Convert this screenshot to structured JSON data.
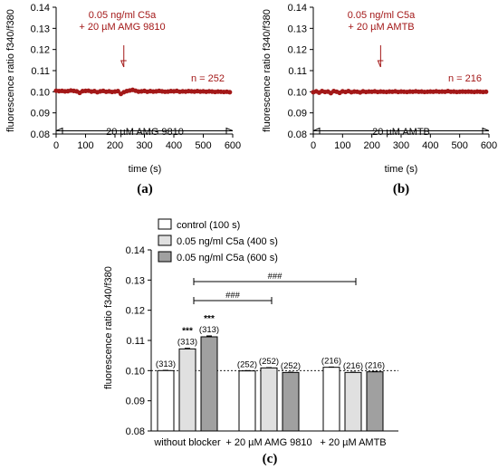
{
  "panels": {
    "a": {
      "letter": "(a)"
    },
    "b": {
      "letter": "(b)"
    },
    "c": {
      "letter": "(c)"
    }
  },
  "colors": {
    "trace": "#a31818",
    "bar_control": "#ffffff",
    "bar_400": "#e0e0e0",
    "bar_600": "#a0a0a0"
  },
  "chart_data": [
    {
      "id": "a",
      "type": "scatter",
      "xlabel": "time (s)",
      "ylabel": "fluorescence ratio f340/f380",
      "xlim": [
        0,
        600
      ],
      "ylim": [
        0.08,
        0.14
      ],
      "xticks": [
        0,
        100,
        200,
        300,
        400,
        500,
        600
      ],
      "yticks": [
        0.08,
        0.09,
        0.1,
        0.11,
        0.12,
        0.13,
        0.14
      ],
      "stimulus_label_line1": "0.05 ng/ml C5a",
      "stimulus_label_line2": "+ 20 µM AMG 9810",
      "stimulus_time": 230,
      "n_label": "n = 252",
      "blocker_label": "20 µM AMG 9810",
      "blocker_range": [
        0,
        600
      ],
      "series": [
        {
          "x": [
            0,
            10,
            20,
            30,
            40,
            50,
            60,
            70,
            80,
            90,
            100,
            110,
            120,
            130,
            140,
            150,
            160,
            170,
            180,
            190,
            200,
            210,
            220,
            230,
            240,
            250,
            260,
            270,
            280,
            290,
            300,
            310,
            320,
            330,
            340,
            350,
            360,
            370,
            380,
            390,
            400,
            410,
            420,
            430,
            440,
            450,
            460,
            470,
            480,
            490,
            500,
            510,
            520,
            530,
            540,
            550,
            560,
            570,
            580,
            590
          ],
          "y": [
            0.1005,
            0.1003,
            0.1004,
            0.1002,
            0.1003,
            0.1006,
            0.1004,
            0.1002,
            0.0995,
            0.1003,
            0.1004,
            0.1005,
            0.1001,
            0.1003,
            0.0998,
            0.1002,
            0.1004,
            0.1,
            0.1002,
            0.0999,
            0.1001,
            0.1003,
            0.099,
            0.0998,
            0.1003,
            0.1006,
            0.1009,
            0.1005,
            0.1001,
            0.1002,
            0.1004,
            0.1,
            0.1003,
            0.1001,
            0.1002,
            0.1004,
            0.1002,
            0.1,
            0.1001,
            0.1003,
            0.1002,
            0.1004,
            0.1,
            0.1002,
            0.1001,
            0.1003,
            0.1002,
            0.1001,
            0.1003,
            0.1001,
            0.1002,
            0.1,
            0.1002,
            0.1001,
            0.0999,
            0.1001,
            0.1,
            0.0999,
            0.1,
            0.0998
          ]
        }
      ]
    },
    {
      "id": "b",
      "type": "scatter",
      "xlabel": "time (s)",
      "ylabel": "fluorescence ratio f340/f380",
      "xlim": [
        0,
        600
      ],
      "ylim": [
        0.08,
        0.14
      ],
      "xticks": [
        0,
        100,
        200,
        300,
        400,
        500,
        600
      ],
      "yticks": [
        0.08,
        0.09,
        0.1,
        0.11,
        0.12,
        0.13,
        0.14
      ],
      "stimulus_label_line1": "0.05 ng/ml C5a",
      "stimulus_label_line2": "+ 20 µM AMTB",
      "stimulus_time": 230,
      "n_label": "n = 216",
      "blocker_label": "20 µM AMTB",
      "blocker_range": [
        0,
        600
      ],
      "series": [
        {
          "x": [
            0,
            10,
            20,
            30,
            40,
            50,
            60,
            70,
            80,
            90,
            100,
            110,
            120,
            130,
            140,
            150,
            160,
            170,
            180,
            190,
            200,
            210,
            220,
            230,
            240,
            250,
            260,
            270,
            280,
            290,
            300,
            310,
            320,
            330,
            340,
            350,
            360,
            370,
            380,
            390,
            400,
            410,
            420,
            430,
            440,
            450,
            460,
            470,
            480,
            490,
            500,
            510,
            520,
            530,
            540,
            550,
            560,
            570,
            580,
            590
          ],
          "y": [
            0.0998,
            0.1002,
            0.0996,
            0.1003,
            0.0999,
            0.1001,
            0.0994,
            0.1003,
            0.1,
            0.0995,
            0.1002,
            0.0999,
            0.1003,
            0.0998,
            0.1001,
            0.1,
            0.0997,
            0.1002,
            0.0999,
            0.1001,
            0.1,
            0.1002,
            0.0999,
            0.1001,
            0.1,
            0.0999,
            0.1001,
            0.1,
            0.1002,
            0.0999,
            0.1001,
            0.1,
            0.0999,
            0.1001,
            0.1,
            0.1002,
            0.1,
            0.1001,
            0.0999,
            0.1,
            0.1001,
            0.1,
            0.1002,
            0.1,
            0.1001,
            0.1,
            0.1003,
            0.1,
            0.1001,
            0.0999,
            0.1,
            0.1001,
            0.1,
            0.1001,
            0.1,
            0.0999,
            0.1001,
            0.1,
            0.0999,
            0.1
          ]
        }
      ]
    },
    {
      "id": "c",
      "type": "bar",
      "ylabel": "fluorescence ratio f340/f380",
      "ylim": [
        0.08,
        0.14
      ],
      "yticks": [
        0.08,
        0.09,
        0.1,
        0.11,
        0.12,
        0.13,
        0.14
      ],
      "baseline": 0.1,
      "categories": [
        "without blocker",
        "+ 20 µM AMG 9810",
        "+ 20 µM AMTB"
      ],
      "series": [
        {
          "name": "control (100 s)",
          "values": [
            0.1,
            0.0999,
            0.1011
          ],
          "errors": [
            0.0001,
            0.0001,
            0.0001
          ],
          "n_labels": [
            "(313)",
            "(252)",
            "(216)"
          ],
          "sig": [
            "",
            "",
            ""
          ]
        },
        {
          "name": "0.05 ng/ml C5a (400 s)",
          "values": [
            0.1072,
            0.1009,
            0.0994
          ],
          "errors": [
            0.0002,
            0.0001,
            0.0001
          ],
          "n_labels": [
            "(313)",
            "(252)",
            "(216)"
          ],
          "sig": [
            "***",
            "",
            ""
          ]
        },
        {
          "name": "0.05 ng/ml C5a (600 s)",
          "values": [
            0.1112,
            0.0994,
            0.0996
          ],
          "errors": [
            0.0003,
            0.0001,
            0.0001
          ],
          "n_labels": [
            "(313)",
            "(252)",
            "(216)"
          ],
          "sig": [
            "***",
            "",
            ""
          ]
        }
      ],
      "comparisons": [
        {
          "label": "###",
          "from_category": 0,
          "to_category": 2
        },
        {
          "label": "###",
          "from_category": 0,
          "to_category": 1
        }
      ]
    }
  ]
}
